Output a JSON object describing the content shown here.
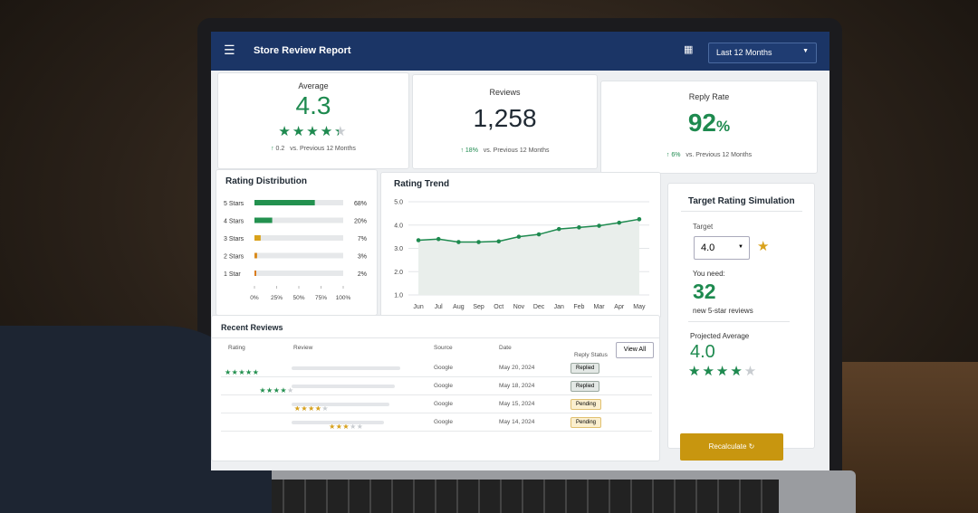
{
  "header": {
    "title": "Store Review Report",
    "period": "Last 12 Months"
  },
  "kpis": [
    {
      "label": "Average",
      "value": 4.3,
      "change": "0.2",
      "compare": "vs. Previous 12 Months"
    },
    {
      "label": "Reviews",
      "value": "1,258",
      "change": "18%",
      "compare": "vs. Previous 12 Months"
    },
    {
      "label": "Reply Rate",
      "value": "92",
      "unit": "%",
      "change": "6%",
      "compare": "vs. Previous 12 Months"
    }
  ],
  "rating_distribution": {
    "title": "Rating Distribution",
    "categories": [
      "5 Stars",
      "4 Stars",
      "3 Stars",
      "2 Stars",
      "1 Star"
    ],
    "values": [
      68,
      20,
      7,
      3,
      2
    ],
    "value_labels": [
      "68%",
      "20%",
      "7%",
      "3%",
      "2%"
    ],
    "colors": [
      "#23914f",
      "#23914f",
      "#d9a21b",
      "#d98a1b",
      "#d97a1b"
    ],
    "xlim": [
      0,
      100
    ],
    "xticks": [
      {
        "value": 0,
        "label": "0%"
      },
      {
        "value": 25,
        "label": "25%"
      },
      {
        "value": 50,
        "label": "50%"
      },
      {
        "value": 75,
        "label": "75%"
      },
      {
        "value": 100,
        "label": "100%"
      }
    ]
  },
  "rating_trend": {
    "title": "Rating Trend",
    "categories": [
      "Jun",
      "Jul",
      "Aug",
      "Sep",
      "Oct",
      "Nov",
      "Dec",
      "Jan",
      "Feb",
      "Mar",
      "Apr",
      "May"
    ],
    "values": [
      3.35,
      3.4,
      3.27,
      3.27,
      3.3,
      3.5,
      3.6,
      3.83,
      3.9,
      3.97,
      4.1,
      4.25
    ],
    "color": "#1e8a4f",
    "ylim": [
      1,
      5
    ],
    "yticks": [
      {
        "value": 1,
        "label": "1.0"
      },
      {
        "value": 2,
        "label": "2.0"
      },
      {
        "value": 3,
        "label": "3.0"
      },
      {
        "value": 4,
        "label": "4.0"
      },
      {
        "value": 5,
        "label": "5.0"
      }
    ],
    "grid": true
  },
  "target_simulation": {
    "title": "Target Rating Simulation",
    "target_label": "Target",
    "target": "4.0",
    "need_label": "You need:",
    "need": "32",
    "need_note": "new 5-star reviews",
    "projected_label": "Projected Average",
    "projected": {
      "value": 4,
      "label": "4.0"
    },
    "button": "Recalculate"
  },
  "recent_reviews": {
    "title": "Recent Reviews",
    "view_all": "View All",
    "columns": [
      "Rating",
      "Review",
      "Source",
      "Date",
      "Reply Status"
    ],
    "rows": [
      {
        "rating": 5,
        "star_color": "#23914f",
        "source": "Google",
        "date": "May 20, 2024",
        "status": "Replied"
      },
      {
        "rating": 4,
        "star_color": "#23914f",
        "source": "Google",
        "date": "May 18, 2024",
        "status": "Replied"
      },
      {
        "rating": 4,
        "star_color": "#d9a21b",
        "source": "Google",
        "date": "May 15, 2024",
        "status": "Pending"
      },
      {
        "rating": 3,
        "star_color": "#d9a21b",
        "source": "Google",
        "date": "May 14, 2024",
        "status": "Pending"
      }
    ]
  }
}
